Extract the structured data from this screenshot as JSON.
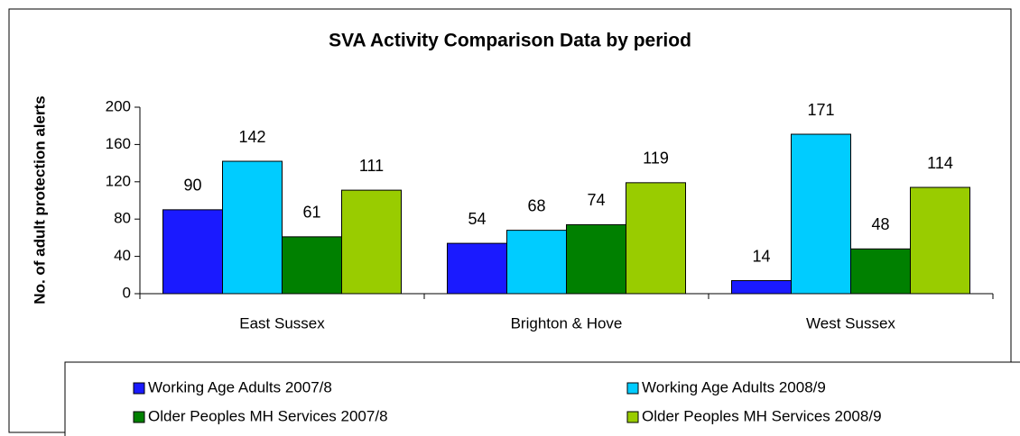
{
  "chart_data": {
    "type": "bar",
    "title": "SVA Activity Comparison Data by period",
    "y_label": "No. of adult protection alerts",
    "categories": [
      "East Sussex",
      "Brighton & Hove",
      "West Sussex"
    ],
    "series": [
      {
        "name": "Working Age Adults 2007/8",
        "color": "#1a1aff",
        "values": [
          90,
          54,
          14
        ]
      },
      {
        "name": "Working Age Adults 2008/9",
        "color": "#00ccff",
        "values": [
          142,
          68,
          171
        ]
      },
      {
        "name": "Older Peoples MH Services 2007/8",
        "color": "#008000",
        "values": [
          61,
          74,
          48
        ]
      },
      {
        "name": "Older Peoples MH Services 2008/9",
        "color": "#99cc00",
        "values": [
          111,
          119,
          114
        ]
      }
    ],
    "ylim": [
      0,
      200
    ],
    "yticks": [
      0,
      40,
      80,
      120,
      160,
      200
    ],
    "grid": false,
    "legend": "bottom"
  }
}
